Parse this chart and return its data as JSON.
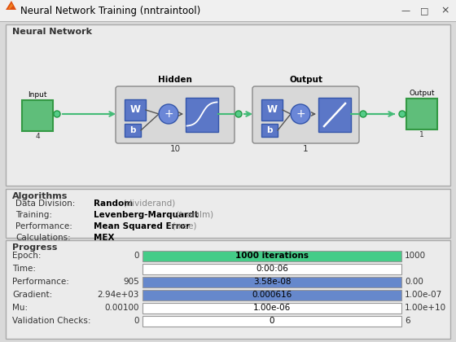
{
  "title": "Neural Network Training (nntraintool)",
  "titlebar_bg": "#f0f0f0",
  "titlebar_border": "#c0c0c0",
  "content_bg": "#d9d9d9",
  "section_bg": "#f0f0f0",
  "section_border": "#aaaaaa",
  "green_box": "#5fbe7a",
  "blue_box": "#5b77c7",
  "blue_circle": "#6b87d7",
  "green_line": "#44bb77",
  "green_circle": "#55cc88",
  "algorithms": [
    [
      "Data Division:",
      "Random",
      "  (dividerand)"
    ],
    [
      "Training:",
      "Levenberg-Marquardt",
      "  (trainlm)"
    ],
    [
      "Performance:",
      "Mean Squared Error",
      "  (mse)"
    ],
    [
      "Calculations:",
      "MEX",
      ""
    ]
  ],
  "progress_rows": [
    {
      "label": "Epoch:",
      "left": "0",
      "center": "1000 iterations",
      "right": "1000",
      "bar_color": "#44cc88",
      "text_color": "#000000",
      "bold": true
    },
    {
      "label": "Time:",
      "left": "",
      "center": "0:00:06",
      "right": "",
      "bar_color": "#ffffff",
      "text_color": "#000000",
      "bold": false
    },
    {
      "label": "Performance:",
      "left": "905",
      "center": "3.58e-08",
      "right": "0.00",
      "bar_color": "#6688cc",
      "text_color": "#000000",
      "bold": false
    },
    {
      "label": "Gradient:",
      "left": "2.94e+03",
      "center": "0.000616",
      "right": "1.00e-07",
      "bar_color": "#6688cc",
      "text_color": "#000000",
      "bold": false
    },
    {
      "label": "Mu:",
      "left": "0.00100",
      "center": "1.00e-06",
      "right": "1.00e+10",
      "bar_color": "#ffffff",
      "text_color": "#000000",
      "bold": false
    },
    {
      "label": "Validation Checks:",
      "left": "0",
      "center": "0",
      "right": "6",
      "bar_color": "#ffffff",
      "text_color": "#000000",
      "bold": false
    }
  ]
}
